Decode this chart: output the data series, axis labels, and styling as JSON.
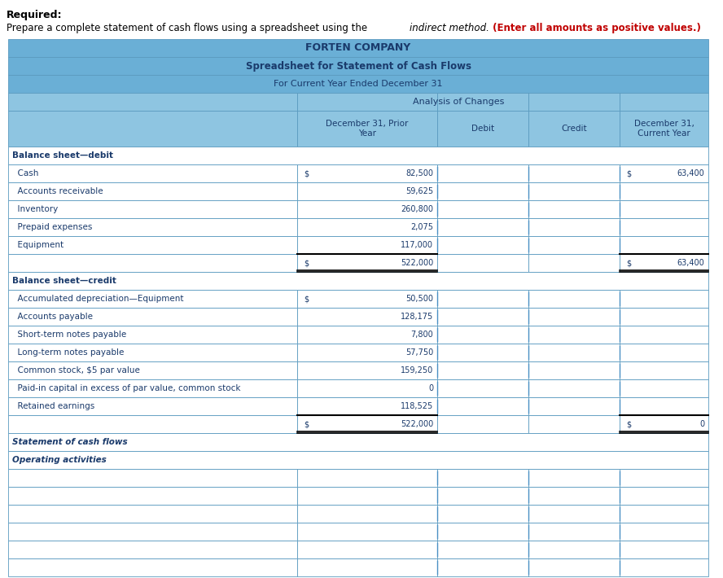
{
  "title1": "FORTEN COMPANY",
  "title2": "Spreadsheet for Statement of Cash Flows",
  "title3": "For Current Year Ended December 31",
  "header_bg": "#6aafd6",
  "col_header_bg": "#8ec5e1",
  "white": "#ffffff",
  "black": "#000000",
  "border_color": "#5a9abf",
  "red_color": "#c00000",
  "dark_blue": "#1a3a6b",
  "analysis_header": "Analysis of Changes",
  "req_bold": "Required:",
  "req_normal": "Prepare a complete statement of cash flows using a spreadsheet using the ",
  "req_italic": "indirect method.",
  "req_red": " (Enter all amounts as positive values.)",
  "col_headers": [
    "December 31, Prior\nYear",
    "Debit",
    "Credit",
    "December 31,\nCurrent Year"
  ],
  "rows": [
    {
      "label": "Balance sheet—debit",
      "type": "section_header",
      "prior": "",
      "current": "",
      "prior_dollar": false,
      "current_dollar": false
    },
    {
      "label": "  Cash",
      "type": "data",
      "prior": "82,500",
      "current": "63,400",
      "prior_dollar": true,
      "current_dollar": true
    },
    {
      "label": "  Accounts receivable",
      "type": "data",
      "prior": "59,625",
      "current": "",
      "prior_dollar": false,
      "current_dollar": false
    },
    {
      "label": "  Inventory",
      "type": "data",
      "prior": "260,800",
      "current": "",
      "prior_dollar": false,
      "current_dollar": false
    },
    {
      "label": "  Prepaid expenses",
      "type": "data",
      "prior": "2,075",
      "current": "",
      "prior_dollar": false,
      "current_dollar": false
    },
    {
      "label": "  Equipment",
      "type": "data",
      "prior": "117,000",
      "current": "",
      "prior_dollar": false,
      "current_dollar": false
    },
    {
      "label": "",
      "type": "subtotal",
      "prior": "522,000",
      "current": "63,400",
      "prior_dollar": true,
      "current_dollar": true
    },
    {
      "label": "Balance sheet—credit",
      "type": "section_header",
      "prior": "",
      "current": "",
      "prior_dollar": false,
      "current_dollar": false
    },
    {
      "label": "  Accumulated depreciation—Equipment",
      "type": "data",
      "prior": "50,500",
      "current": "",
      "prior_dollar": true,
      "current_dollar": false
    },
    {
      "label": "  Accounts payable",
      "type": "data",
      "prior": "128,175",
      "current": "",
      "prior_dollar": false,
      "current_dollar": false
    },
    {
      "label": "  Short-term notes payable",
      "type": "data",
      "prior": "7,800",
      "current": "",
      "prior_dollar": false,
      "current_dollar": false
    },
    {
      "label": "  Long-term notes payable",
      "type": "data",
      "prior": "57,750",
      "current": "",
      "prior_dollar": false,
      "current_dollar": false
    },
    {
      "label": "  Common stock, $5 par value",
      "type": "data",
      "prior": "159,250",
      "current": "",
      "prior_dollar": false,
      "current_dollar": false
    },
    {
      "label": "  Paid-in capital in excess of par value, common stock",
      "type": "data",
      "prior": "0",
      "current": "",
      "prior_dollar": false,
      "current_dollar": false
    },
    {
      "label": "  Retained earnings",
      "type": "data",
      "prior": "118,525",
      "current": "",
      "prior_dollar": false,
      "current_dollar": false
    },
    {
      "label": "",
      "type": "subtotal",
      "prior": "522,000",
      "current": "0",
      "prior_dollar": true,
      "current_dollar": true
    },
    {
      "label": "Statement of cash flows",
      "type": "section_header2",
      "prior": "",
      "current": "",
      "prior_dollar": false,
      "current_dollar": false
    },
    {
      "label": "Operating activities",
      "type": "section_header2",
      "prior": "",
      "current": "",
      "prior_dollar": false,
      "current_dollar": false
    },
    {
      "label": "",
      "type": "empty",
      "prior": "",
      "current": "",
      "prior_dollar": false,
      "current_dollar": false
    },
    {
      "label": "",
      "type": "empty",
      "prior": "",
      "current": "",
      "prior_dollar": false,
      "current_dollar": false
    },
    {
      "label": "",
      "type": "empty",
      "prior": "",
      "current": "",
      "prior_dollar": false,
      "current_dollar": false
    },
    {
      "label": "",
      "type": "empty",
      "prior": "",
      "current": "",
      "prior_dollar": false,
      "current_dollar": false
    },
    {
      "label": "",
      "type": "empty",
      "prior": "",
      "current": "",
      "prior_dollar": false,
      "current_dollar": false
    },
    {
      "label": "",
      "type": "empty",
      "prior": "",
      "current": "",
      "prior_dollar": false,
      "current_dollar": false
    }
  ]
}
